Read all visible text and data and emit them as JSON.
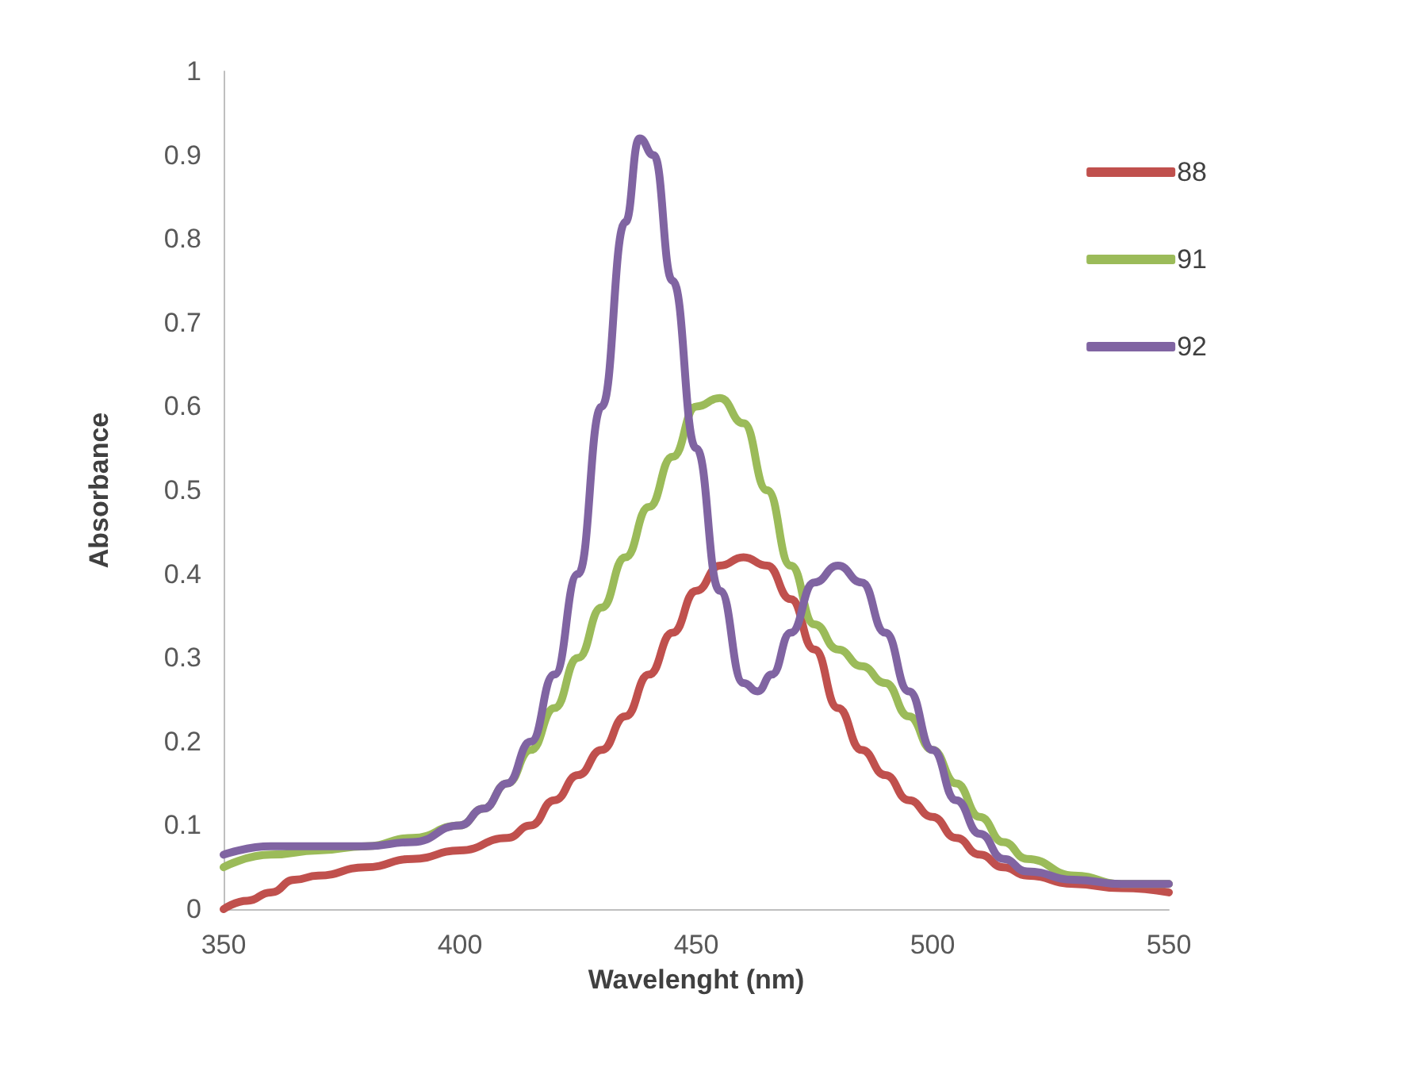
{
  "chart_data": {
    "type": "line",
    "xlabel": "Wavelenght (nm)",
    "ylabel": "Absorbance",
    "xlim": [
      350,
      550
    ],
    "xticks": [
      350,
      400,
      450,
      500,
      550
    ],
    "ylim": [
      0,
      1
    ],
    "yticks": [
      0,
      0.1,
      0.2,
      0.3,
      0.4,
      0.5,
      0.6,
      0.7,
      0.8,
      0.9,
      1
    ],
    "grid": false,
    "legend": "top right",
    "marker": "none",
    "line_style": "solid",
    "series": [
      {
        "name": "88",
        "color": "#c0504d",
        "x": [
          350,
          355,
          360,
          365,
          370,
          380,
          390,
          400,
          410,
          415,
          420,
          425,
          430,
          435,
          440,
          445,
          450,
          455,
          460,
          465,
          470,
          475,
          480,
          485,
          490,
          495,
          500,
          505,
          510,
          515,
          520,
          530,
          540,
          550
        ],
        "values": [
          0.0,
          0.01,
          0.02,
          0.035,
          0.04,
          0.05,
          0.06,
          0.07,
          0.085,
          0.1,
          0.13,
          0.16,
          0.19,
          0.23,
          0.28,
          0.33,
          0.38,
          0.41,
          0.42,
          0.41,
          0.37,
          0.31,
          0.24,
          0.19,
          0.16,
          0.13,
          0.11,
          0.085,
          0.065,
          0.05,
          0.04,
          0.03,
          0.025,
          0.02
        ]
      },
      {
        "name": "91",
        "color": "#9bbb59",
        "x": [
          350,
          360,
          370,
          380,
          390,
          400,
          405,
          410,
          415,
          420,
          425,
          430,
          435,
          440,
          445,
          450,
          455,
          460,
          465,
          470,
          475,
          480,
          485,
          490,
          495,
          500,
          505,
          510,
          515,
          520,
          530,
          540,
          550
        ],
        "values": [
          0.05,
          0.065,
          0.07,
          0.075,
          0.085,
          0.1,
          0.12,
          0.15,
          0.19,
          0.24,
          0.3,
          0.36,
          0.42,
          0.48,
          0.54,
          0.6,
          0.61,
          0.58,
          0.5,
          0.41,
          0.34,
          0.31,
          0.29,
          0.27,
          0.23,
          0.19,
          0.15,
          0.11,
          0.08,
          0.06,
          0.04,
          0.03,
          0.03
        ]
      },
      {
        "name": "92",
        "color": "#8064a2",
        "x": [
          350,
          360,
          370,
          380,
          390,
          400,
          405,
          410,
          415,
          420,
          425,
          430,
          435,
          438,
          441,
          445,
          450,
          455,
          460,
          463,
          466,
          470,
          475,
          480,
          485,
          490,
          495,
          500,
          505,
          510,
          515,
          520,
          530,
          540,
          550
        ],
        "values": [
          0.065,
          0.075,
          0.075,
          0.075,
          0.08,
          0.1,
          0.12,
          0.15,
          0.2,
          0.28,
          0.4,
          0.6,
          0.82,
          0.92,
          0.9,
          0.75,
          0.55,
          0.38,
          0.27,
          0.26,
          0.28,
          0.33,
          0.39,
          0.41,
          0.39,
          0.33,
          0.26,
          0.19,
          0.13,
          0.09,
          0.06,
          0.045,
          0.035,
          0.03,
          0.03
        ]
      }
    ]
  }
}
